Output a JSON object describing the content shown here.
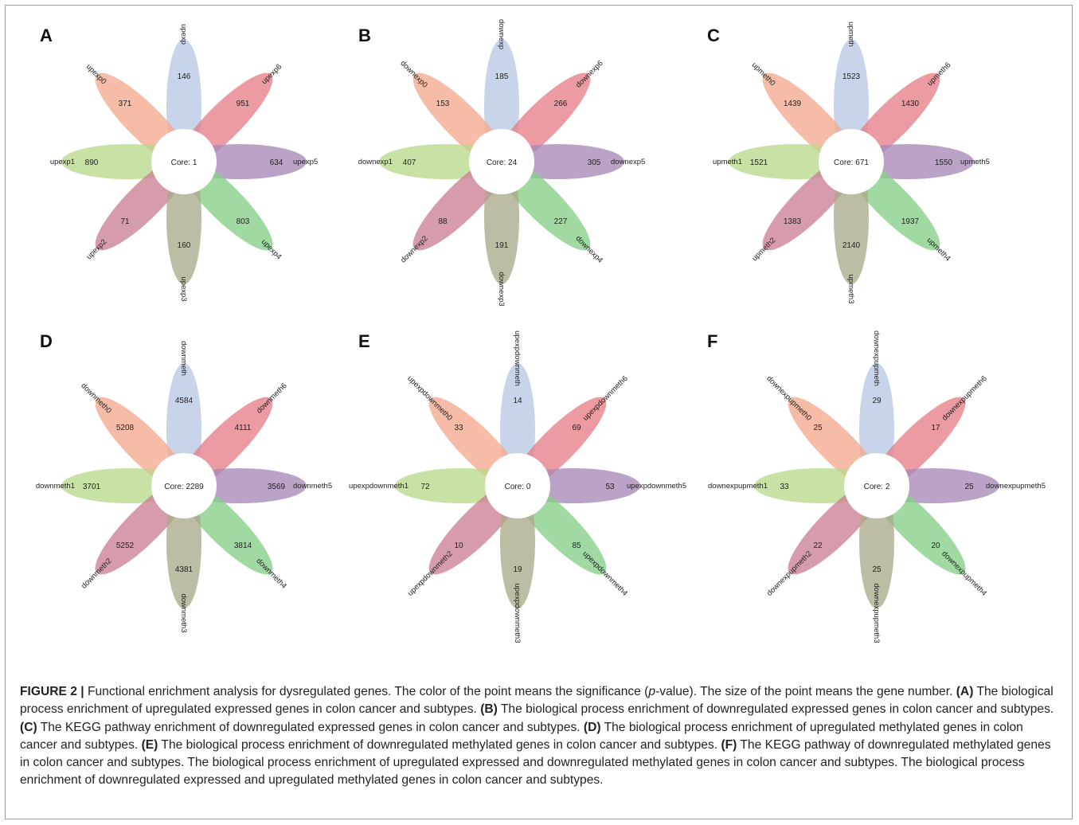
{
  "colors": {
    "petals": [
      "#b7c8e4",
      "#f3a98e",
      "#e67f86",
      "#b9d98c",
      "#a889b7",
      "#cc8095",
      "#85cf88",
      "#aaa98a"
    ],
    "text": "#222222",
    "frame": "#9a9a9a"
  },
  "panels": [
    {
      "letter": "A",
      "core": "Core: 1",
      "labels": {
        "top": "upexp",
        "top_left": "upexp0",
        "top_right": "upexp6",
        "left": "upexp1",
        "right": "upexp5",
        "bottom_left": "upexp2",
        "bottom_right": "upexp4",
        "bottom": "upexp3"
      },
      "counts": {
        "top": "146",
        "top_left": "371",
        "top_right": "951",
        "left": "890",
        "right": "634",
        "bottom_left": "71",
        "bottom_right": "803",
        "bottom": "160"
      }
    },
    {
      "letter": "B",
      "core": "Core: 24",
      "labels": {
        "top": "downexp",
        "top_left": "downexp0",
        "top_right": "downexp6",
        "left": "downexp1",
        "right": "downexp5",
        "bottom_left": "downexp2",
        "bottom_right": "downexp4",
        "bottom": "downexp3"
      },
      "counts": {
        "top": "185",
        "top_left": "153",
        "top_right": "266",
        "left": "407",
        "right": "305",
        "bottom_left": "88",
        "bottom_right": "227",
        "bottom": "191"
      }
    },
    {
      "letter": "C",
      "core": "Core: 671",
      "labels": {
        "top": "upmeth",
        "top_left": "upmeth0",
        "top_right": "upmeth6",
        "left": "upmeth1",
        "right": "upmeth5",
        "bottom_left": "upmeth2",
        "bottom_right": "upmeth4",
        "bottom": "upmeth3"
      },
      "counts": {
        "top": "1523",
        "top_left": "1439",
        "top_right": "1430",
        "left": "1521",
        "right": "1550",
        "bottom_left": "1383",
        "bottom_right": "1937",
        "bottom": "2140"
      }
    },
    {
      "letter": "D",
      "core": "Core: 2289",
      "labels": {
        "top": "downmeth",
        "top_left": "downmeth0",
        "top_right": "downmeth6",
        "left": "downmeth1",
        "right": "downmeth5",
        "bottom_left": "downmeth2",
        "bottom_right": "downmeth4",
        "bottom": "downmeth3"
      },
      "counts": {
        "top": "4584",
        "top_left": "5208",
        "top_right": "4111",
        "left": "3701",
        "right": "3569",
        "bottom_left": "5252",
        "bottom_right": "3814",
        "bottom": "4381"
      }
    },
    {
      "letter": "E",
      "core": "Core: 0",
      "labels": {
        "top": "upexpdownmeth",
        "top_left": "upexpdownmeth0",
        "top_right": "upexpdownmeth6",
        "left": "upexpdownmeth1",
        "right": "upexpdownmeth5",
        "bottom_left": "upexpdownmeth2",
        "bottom_right": "upexpdownmeth4",
        "bottom": "upexpdownmeth3"
      },
      "counts": {
        "top": "14",
        "top_left": "33",
        "top_right": "69",
        "left": "72",
        "right": "53",
        "bottom_left": "10",
        "bottom_right": "85",
        "bottom": "19"
      }
    },
    {
      "letter": "F",
      "core": "Core: 2",
      "labels": {
        "top": "downexpupmeth",
        "top_left": "downexpupmeth0",
        "top_right": "downexpupmeth6",
        "left": "downexpupmeth1",
        "right": "downexpupmeth5",
        "bottom_left": "downexpupmeth2",
        "bottom_right": "downexpupmeth4",
        "bottom": "downexpupmeth3"
      },
      "counts": {
        "top": "29",
        "top_left": "25",
        "top_right": "17",
        "left": "33",
        "right": "25",
        "bottom_left": "22",
        "bottom_right": "20",
        "bottom": "25"
      }
    }
  ],
  "caption": {
    "figure_label": "FIGURE 2 |",
    "intro": " Functional enrichment analysis for dysregulated genes. The color of the point means the significance (",
    "p_symbol": "p",
    "intro_after_p": "-value). The size of the point means the gene number. ",
    "parts": [
      {
        "label": "(A)",
        "text": " The biological process enrichment of upregulated expressed genes in colon cancer and subtypes. "
      },
      {
        "label": "(B)",
        "text": " The biological process enrichment of downregulated expressed genes in colon cancer and subtypes. "
      },
      {
        "label": "(C)",
        "text": " The KEGG pathway enrichment of downregulated expressed genes in colon cancer and subtypes. "
      },
      {
        "label": "(D)",
        "text": " The biological process enrichment of upregulated methylated genes in colon cancer and subtypes. "
      },
      {
        "label": "(E)",
        "text": " The biological process enrichment of downregulated methylated genes in colon cancer and subtypes. "
      },
      {
        "label": "(F)",
        "text": " The KEGG pathway of downregulated methylated genes in colon cancer and subtypes. The biological process enrichment of upregulated expressed and downregulated methylated genes in colon cancer and subtypes. The biological process enrichment of downregulated expressed and upregulated methylated genes in colon cancer and subtypes."
      }
    ]
  }
}
